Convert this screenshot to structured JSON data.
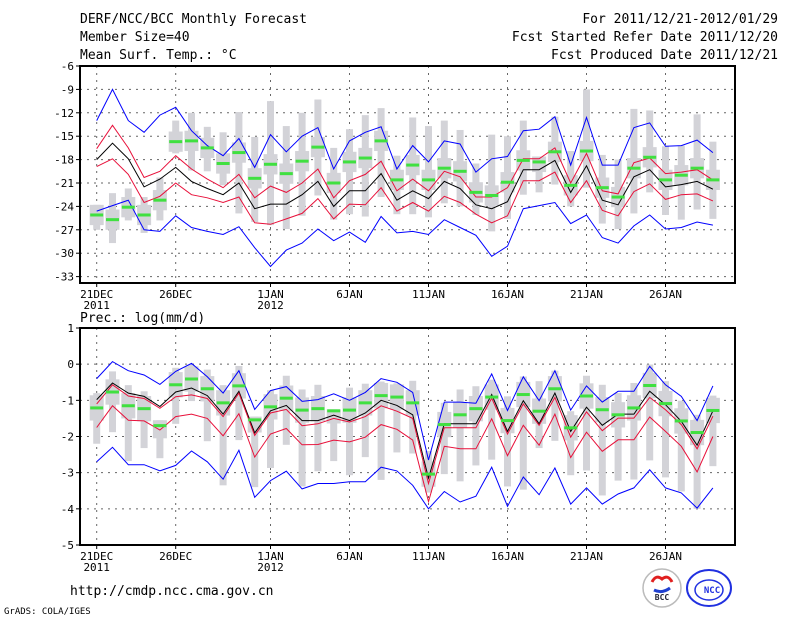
{
  "header": {
    "title": "DERF/NCC/BCC Monthly Forecast",
    "member_size": "Member Size=40",
    "period": "For 2011/12/21-2012/01/29",
    "refer_date": "Fcst Started Refer Date 2011/12/20",
    "produced_date": "Fcst Produced Date 2011/12/21"
  },
  "footer": {
    "url": "http://cmdp.ncc.cma.gov.cn",
    "credit": "GrADS: COLA/IGES",
    "logo_bcc": "BCC",
    "logo_ncc": "NCC"
  },
  "colors": {
    "mean": "#000000",
    "inner": "#e8103a",
    "outer": "#0000ff",
    "median": "#40e040",
    "box": "#d3d3d8"
  },
  "chart_data": [
    {
      "type": "line",
      "title": "Mean Surf. Temp.: °C",
      "x_tick_labels": [
        [
          "21DEC",
          "2011"
        ],
        [
          "26DEC",
          ""
        ],
        [
          "1JAN",
          "2012"
        ],
        [
          "6JAN",
          ""
        ],
        [
          "11JAN",
          ""
        ],
        [
          "16JAN",
          ""
        ],
        [
          "21JAN",
          ""
        ],
        [
          "26JAN",
          ""
        ]
      ],
      "x_tick_days": [
        0,
        5,
        11,
        16,
        21,
        26,
        31,
        36
      ],
      "days": 40,
      "ylim": [
        -33.8,
        -6
      ],
      "y_ticks": [
        -6,
        -9,
        -12,
        -15,
        -18,
        -21,
        -24,
        -27,
        -30,
        -33
      ],
      "grid": true,
      "box_halfwidth": 1.3,
      "series": [
        {
          "name": "mean",
          "color": "#000000",
          "values": [
            -18,
            -15.9,
            -17.9,
            -21.5,
            -20.5,
            -19,
            -20.8,
            -21.7,
            -22.5,
            -21,
            -24.3,
            -23.7,
            -23.7,
            -22.5,
            -20.8,
            -24,
            -22,
            -22,
            -19.8,
            -23.2,
            -22,
            -23,
            -20.8,
            -21.7,
            -23.8,
            -24.3,
            -23.4,
            -19.3,
            -19.3,
            -18.1,
            -22.2,
            -18.8,
            -23.2,
            -23.8,
            -20.2,
            -19.3,
            -21.5,
            -21.2,
            -20.8,
            -21.8
          ]
        },
        {
          "name": "upper-inner",
          "color": "#e8103a",
          "values": [
            -16.6,
            -13.6,
            -16.5,
            -20.3,
            -19.5,
            -17.5,
            -19.2,
            -20.5,
            -21.6,
            -19.9,
            -22.9,
            -21.4,
            -22.2,
            -21,
            -19.2,
            -22.9,
            -20.7,
            -19.9,
            -18.2,
            -22,
            -20.5,
            -22,
            -19.5,
            -20.2,
            -22.8,
            -22.8,
            -21.6,
            -17.9,
            -17.9,
            -16.5,
            -21,
            -17.2,
            -22,
            -22.4,
            -18.4,
            -17.8,
            -19.8,
            -19.6,
            -19.3,
            -20.6
          ]
        },
        {
          "name": "lower-inner",
          "color": "#e8103a",
          "values": [
            -18.9,
            -17.9,
            -19.9,
            -23.5,
            -22.7,
            -21,
            -22.5,
            -22.9,
            -23.5,
            -22.8,
            -26.1,
            -26.3,
            -25.6,
            -24.9,
            -23,
            -25.6,
            -23.7,
            -23.8,
            -21.6,
            -24.6,
            -23.5,
            -24.6,
            -22.7,
            -23.5,
            -25,
            -26.1,
            -25.2,
            -20.7,
            -20.7,
            -19.6,
            -23.5,
            -20.7,
            -24.5,
            -25.2,
            -22.1,
            -21.1,
            -23.1,
            -22.5,
            -22.4,
            -23.3
          ]
        },
        {
          "name": "upper-outer",
          "color": "#0000ff",
          "values": [
            -13,
            -9,
            -13,
            -14.5,
            -12.3,
            -11.3,
            -14.3,
            -16.2,
            -17.5,
            -15.3,
            -19,
            -14.8,
            -17,
            -15,
            -13.9,
            -19.2,
            -15.6,
            -14.5,
            -13.8,
            -19.2,
            -16.2,
            -18.3,
            -15.6,
            -16,
            -19.6,
            -17.9,
            -17.6,
            -14.3,
            -14.1,
            -12.5,
            -18.7,
            -12.6,
            -18.7,
            -18.7,
            -13.9,
            -13.3,
            -16.3,
            -16.2,
            -15.5,
            -17.1
          ]
        },
        {
          "name": "lower-outer",
          "color": "#0000ff",
          "values": [
            -24.6,
            -23.9,
            -23.2,
            -27,
            -27.2,
            -25.2,
            -26.7,
            -27.2,
            -27.6,
            -26.6,
            -29.3,
            -31.7,
            -29.6,
            -28.7,
            -26.9,
            -28.4,
            -27.3,
            -28.6,
            -25.3,
            -27.4,
            -27.2,
            -27.6,
            -25.7,
            -26.7,
            -27.7,
            -30.4,
            -29.1,
            -24.3,
            -23.9,
            -23.5,
            -26.2,
            -25.1,
            -28,
            -28.7,
            -26.5,
            -25.1,
            -26.9,
            -26.7,
            -26,
            -26.4
          ]
        }
      ],
      "median": [
        -25.1,
        -25.7,
        -24.1,
        -25.1,
        -23.2,
        -15.7,
        -15.6,
        -16.5,
        -18.5,
        -17.1,
        -20.4,
        -18.6,
        -19.8,
        -18.2,
        -16.4,
        -21,
        -18.3,
        -17.8,
        -15.6,
        -20.6,
        -18.7,
        -20.6,
        -19.1,
        -19.5,
        -22.2,
        -22.6,
        -20.9,
        -18.1,
        -18.3,
        -17,
        -21.3,
        -16.9,
        -21.6,
        -22.8,
        -19.1,
        -17.7,
        -20.6,
        -20,
        -19.1,
        -20.6
      ],
      "whisker_max": [
        -23.8,
        -22.3,
        -21.7,
        -22.8,
        -20.3,
        -13,
        -12,
        -13.8,
        -14.5,
        -11.9,
        -15.1,
        -10.5,
        -13.7,
        -12,
        -10.3,
        -16.5,
        -14.1,
        -12.3,
        -11.4,
        -17.5,
        -12.6,
        -13.7,
        -13,
        -14.2,
        -18.5,
        -14.8,
        -15,
        -13,
        -17.6,
        -12.5,
        -16.9,
        -9,
        -17.4,
        -18,
        -11.5,
        -11.7,
        -16.3,
        -16.2,
        -12.2,
        -15.7
      ],
      "whisker_min": [
        -27,
        -28.7,
        -25.8,
        -27.4,
        -25.8,
        -17.2,
        -19.4,
        -19.5,
        -21.3,
        -24.9,
        -26,
        -26.4,
        -26.9,
        -25.2,
        -22.6,
        -25.7,
        -25,
        -25.3,
        -22.8,
        -25,
        -25,
        -25.4,
        -23.6,
        -24,
        -25.1,
        -27.2,
        -25.6,
        -22.5,
        -22.2,
        -21.2,
        -24,
        -21.6,
        -26.2,
        -26.9,
        -24.9,
        -22.2,
        -25.1,
        -25.7,
        -24.4,
        -25.6
      ]
    },
    {
      "type": "line",
      "title": "Prec.: log(mm/d)",
      "x_tick_labels": [
        [
          "21DEC",
          "2011"
        ],
        [
          "26DEC",
          ""
        ],
        [
          "1JAN",
          "2012"
        ],
        [
          "6JAN",
          ""
        ],
        [
          "11JAN",
          ""
        ],
        [
          "16JAN",
          ""
        ],
        [
          "21JAN",
          ""
        ],
        [
          "26JAN",
          ""
        ]
      ],
      "x_tick_days": [
        0,
        5,
        11,
        16,
        21,
        26,
        31,
        36
      ],
      "days": 40,
      "ylim": [
        -5,
        1
      ],
      "y_ticks": [
        1,
        0,
        -1,
        -2,
        -3,
        -4,
        -5
      ],
      "grid": true,
      "box_halfwidth": 0.35,
      "series": [
        {
          "name": "mean",
          "color": "#000000",
          "values": [
            -0.98,
            -0.52,
            -0.8,
            -0.89,
            -1.17,
            -0.77,
            -0.66,
            -0.87,
            -1.38,
            -0.75,
            -1.9,
            -1.29,
            -1.14,
            -1.56,
            -1.56,
            -1.41,
            -1.56,
            -1.35,
            -1,
            -1.14,
            -1.4,
            -3.15,
            -1.65,
            -1.65,
            -1.65,
            -0.84,
            -1.86,
            -1.01,
            -1.65,
            -0.8,
            -1.86,
            -1.19,
            -1.69,
            -1.38,
            -1.38,
            -0.75,
            -1.12,
            -1.58,
            -2.24,
            -1.29
          ]
        },
        {
          "name": "upper-inner",
          "color": "#e8103a",
          "values": [
            -1.1,
            -0.57,
            -0.88,
            -0.95,
            -1.22,
            -0.9,
            -0.85,
            -0.95,
            -1.45,
            -0.8,
            -1.97,
            -1.35,
            -1.25,
            -1.7,
            -1.65,
            -1.5,
            -1.6,
            -1.45,
            -1.15,
            -1.3,
            -1.5,
            -3.3,
            -1.76,
            -1.76,
            -1.76,
            -0.94,
            -1.93,
            -1.1,
            -1.69,
            -0.92,
            -2.02,
            -1.32,
            -1.84,
            -1.49,
            -1.49,
            -0.92,
            -1.26,
            -1.67,
            -2.34,
            -1.44
          ]
        },
        {
          "name": "lower-inner",
          "color": "#e8103a",
          "values": [
            -1.75,
            -1.15,
            -1.55,
            -1.57,
            -1.82,
            -1.45,
            -1.38,
            -1.5,
            -1.98,
            -1.37,
            -2.57,
            -1.93,
            -1.78,
            -2.23,
            -2.22,
            -2.1,
            -2.15,
            -2.02,
            -1.67,
            -1.8,
            -2.1,
            -3.8,
            -2.27,
            -2.34,
            -2.34,
            -1.51,
            -2.53,
            -1.69,
            -2.24,
            -1.38,
            -2.58,
            -1.88,
            -2.41,
            -2.09,
            -2.09,
            -1.46,
            -1.86,
            -2.27,
            -2.98,
            -2
          ]
        },
        {
          "name": "upper-outer",
          "color": "#0000ff",
          "values": [
            -0.4,
            0.07,
            -0.18,
            -0.3,
            -0.56,
            -0.2,
            0.02,
            -0.35,
            -0.8,
            -0.18,
            -1.25,
            -0.73,
            -0.62,
            -1.03,
            -0.98,
            -0.82,
            -1,
            -0.78,
            -0.4,
            -0.5,
            -0.78,
            -2.65,
            -1.05,
            -1.05,
            -1.08,
            -0.27,
            -1.28,
            -0.35,
            -1.01,
            -0.18,
            -1.27,
            -0.6,
            -1.05,
            -0.75,
            -0.75,
            -0.06,
            -0.57,
            -0.89,
            -1.56,
            -0.6
          ]
        },
        {
          "name": "lower-outer",
          "color": "#0000ff",
          "values": [
            -2.7,
            -2.3,
            -2.78,
            -2.78,
            -2.95,
            -2.8,
            -2.4,
            -2.7,
            -3.18,
            -2.38,
            -3.68,
            -3.22,
            -2.96,
            -3.45,
            -3.3,
            -3.3,
            -3.25,
            -3.25,
            -2.85,
            -2.95,
            -3.35,
            -4,
            -3.52,
            -3.81,
            -3.65,
            -2.85,
            -3.93,
            -3.12,
            -3.61,
            -2.87,
            -3.87,
            -3.42,
            -3.87,
            -3.59,
            -3.42,
            -2.92,
            -3.42,
            -3.56,
            -3.98,
            -3.42
          ]
        }
      ],
      "median": [
        -1.21,
        -0.77,
        -1.15,
        -1.23,
        -1.7,
        -0.57,
        -0.41,
        -0.68,
        -1.07,
        -0.6,
        -1.54,
        -1.18,
        -0.94,
        -1.27,
        -1.23,
        -1.29,
        -1.27,
        -1.07,
        -0.87,
        -0.91,
        -1.07,
        -3.04,
        -1.67,
        -1.4,
        -1.23,
        -0.91,
        -1.56,
        -0.84,
        -1.3,
        -0.68,
        -1.76,
        -0.88,
        -1.26,
        -1.4,
        -1.21,
        -0.59,
        -1.09,
        -1.57,
        -1.89,
        -1.28
      ],
      "whisker_max": [
        -0.8,
        -0.2,
        -0.58,
        -0.75,
        -1.55,
        -0.1,
        -0.02,
        -0.15,
        -0.58,
        -0.05,
        -1.45,
        -0.72,
        -0.32,
        -0.7,
        -0.57,
        -1.25,
        -0.65,
        -0.54,
        -0.48,
        -0.53,
        -0.46,
        -2.4,
        -1.07,
        -0.7,
        -0.61,
        -0.43,
        -0.89,
        -0.34,
        -0.47,
        -0.18,
        -1.3,
        -0.32,
        -0.57,
        -0.8,
        -0.52,
        -0.01,
        -0.47,
        -1.01,
        -1.4,
        -0.87
      ],
      "whisker_min": [
        -2.2,
        -1.88,
        -2.68,
        -2.32,
        -2.6,
        -1.65,
        -1.02,
        -2.13,
        -3.35,
        -2.1,
        -3.4,
        -2.87,
        -2.23,
        -3.38,
        -2.96,
        -2.68,
        -3.07,
        -2.57,
        -3.2,
        -2.44,
        -2.47,
        -3.55,
        -3.04,
        -3.24,
        -2.8,
        -2.64,
        -3.38,
        -3.47,
        -2.32,
        -2.12,
        -3.07,
        -2.94,
        -3.63,
        -3.22,
        -3.19,
        -2.66,
        -3.13,
        -3.52,
        -4,
        -2.82
      ]
    }
  ]
}
